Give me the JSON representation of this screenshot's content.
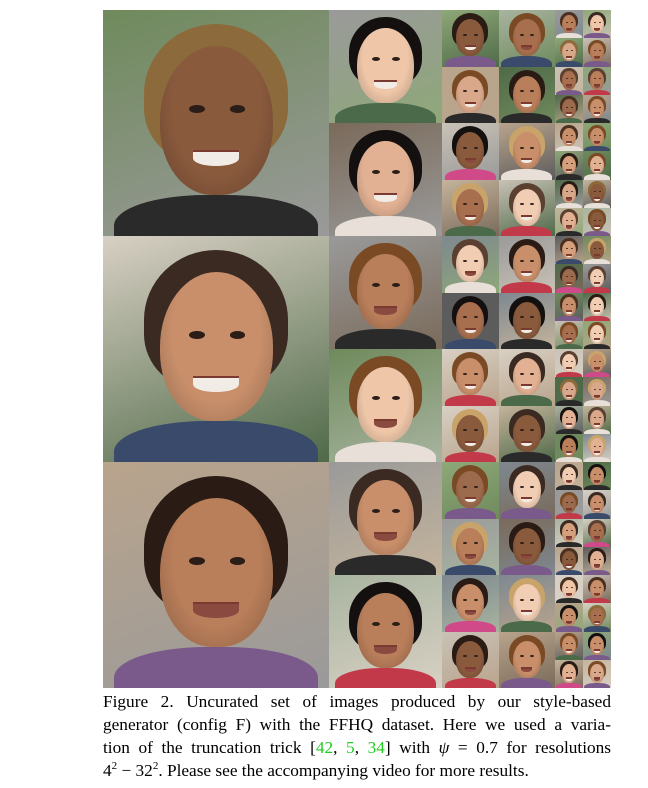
{
  "figure": {
    "caption": {
      "label": "Figure 2.",
      "line1_rest": "Uncurated set of images produced by our style-based",
      "line2_a": "generator (config ",
      "line2_config": "F",
      "line2_b": ") with the FFHQ dataset. Here we used a varia-",
      "line3_a": "tion of the truncation trick [",
      "cite1": "42",
      "sep1": ", ",
      "cite2": "5",
      "sep2": ", ",
      "cite3": "34",
      "line3_b": "] with ",
      "psi_symbol": "ψ",
      "psi_eq": " = 0.7 for resolutions",
      "res_low_base": "4",
      "exp": "2",
      "res_dash": " − ",
      "res_high_base": "32",
      "line4_rest": ". Please see the accompanying video for more results."
    },
    "palette": {
      "skin": [
        "#c98f6b",
        "#e2b193",
        "#a86f4f",
        "#d7a07c",
        "#8a5a3d",
        "#efc6a8",
        "#b97e5a",
        "#f0cdb3",
        "#9c6a4c",
        "#d9a88a"
      ],
      "hair": [
        "#2a1c14",
        "#4a3020",
        "#7a4a25",
        "#151010",
        "#8c6a3c",
        "#5b4032",
        "#c9a46a",
        "#3a2a22"
      ],
      "backgrounds": [
        "#8ea878",
        "#6f8a5c",
        "#9a9a9a",
        "#c9c2b6",
        "#4f6a48",
        "#b9a48c",
        "#7e8890",
        "#d8d0c4",
        "#5c5c5c",
        "#a8b4a0",
        "#c4b49c",
        "#7a6a5a"
      ]
    }
  }
}
